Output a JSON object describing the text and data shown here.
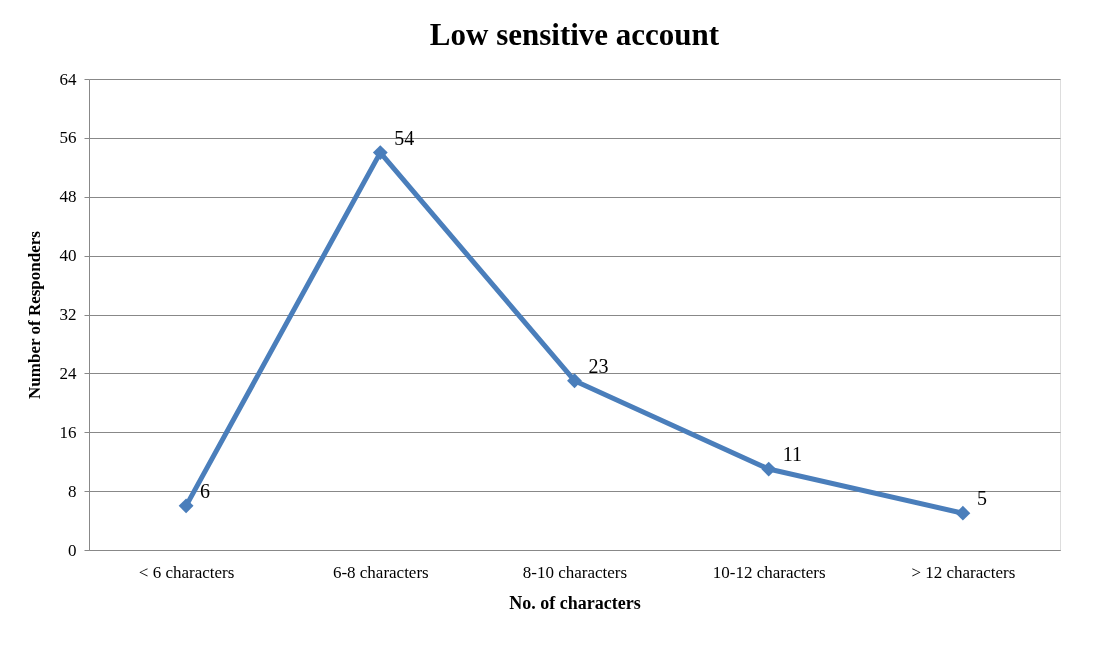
{
  "chart_data": {
    "type": "line",
    "title": "Low sensitive account",
    "xlabel": "No. of characters",
    "ylabel": "Number of Responders",
    "categories": [
      "< 6 characters",
      "6-8 characters",
      "8-10 characters",
      "10-12 characters",
      "> 12 characters"
    ],
    "series": [
      {
        "color": "#4a7ebb",
        "values": [
          6,
          54,
          23,
          11,
          5
        ]
      }
    ],
    "ylim": [
      0,
      64
    ],
    "yticks": [
      0,
      8,
      16,
      24,
      32,
      40,
      48,
      56,
      64
    ],
    "grid": "y",
    "marker": "diamond",
    "line_style": "solid",
    "data_labels": true,
    "legend": false
  }
}
